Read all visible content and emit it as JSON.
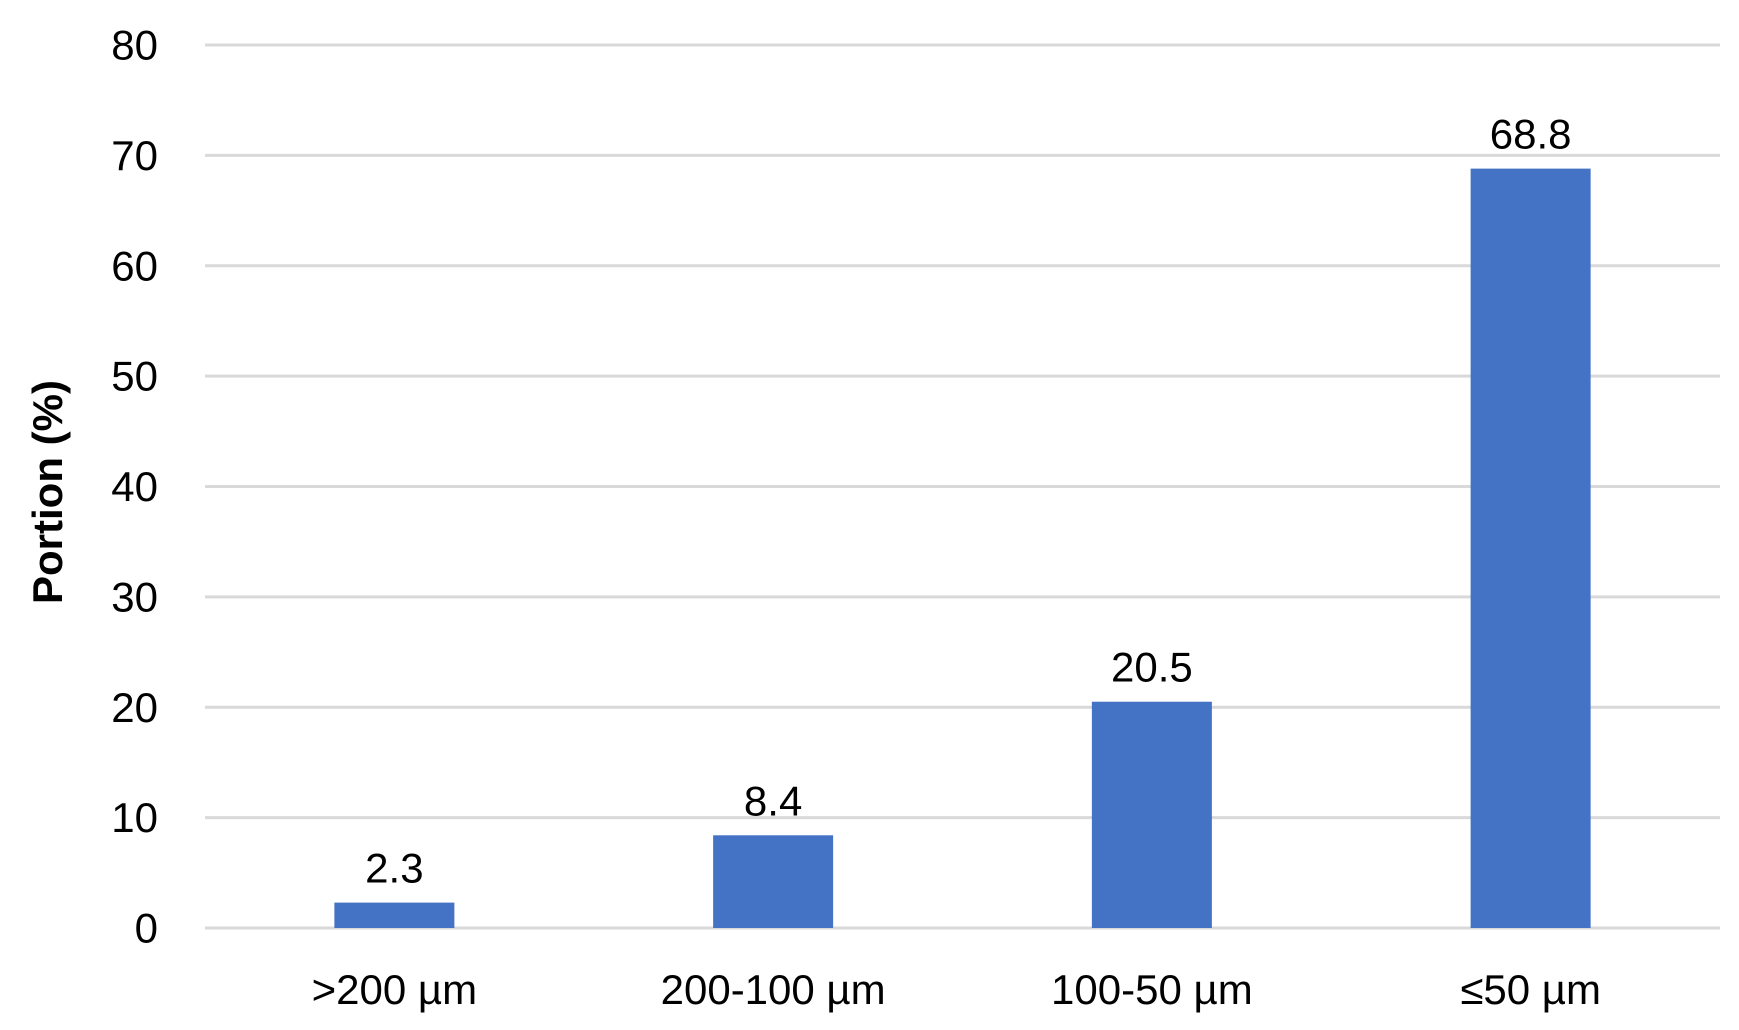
{
  "chart_data": {
    "type": "bar",
    "title": "",
    "xlabel": "",
    "ylabel": "Portion (%)",
    "categories": [
      ">200 µm",
      "200-100 µm",
      "100-50 µm",
      "≤50 µm"
    ],
    "values": [
      2.3,
      8.4,
      20.5,
      68.8
    ],
    "data_labels": [
      "2.3",
      "8.4",
      "20.5",
      "68.8"
    ],
    "ylim": [
      0,
      80
    ],
    "yticks": [
      0,
      10,
      20,
      30,
      40,
      50,
      60,
      70,
      80
    ],
    "ytick_labels": [
      "0",
      "10",
      "20",
      "30",
      "40",
      "50",
      "60",
      "70",
      "80"
    ],
    "grid": true,
    "legend": "none",
    "colors": {
      "bar": "#4472C4",
      "grid": "#D9D9D9",
      "text": "#000000"
    }
  }
}
